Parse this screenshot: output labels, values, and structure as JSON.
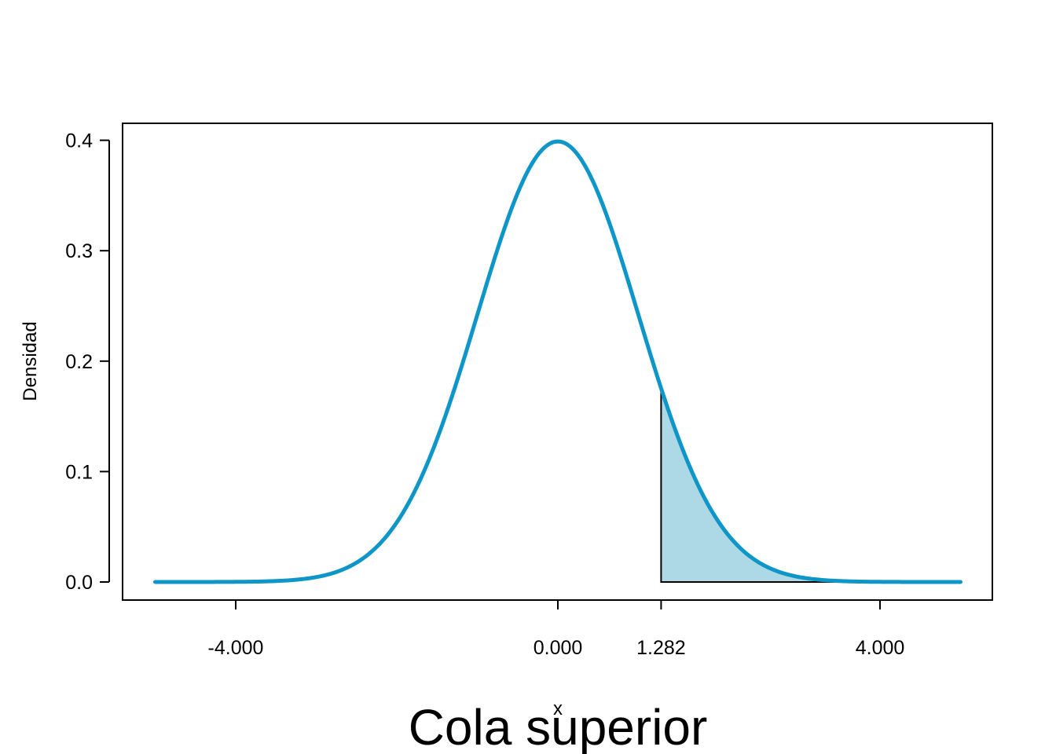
{
  "chart_data": {
    "type": "line",
    "distribution": "normal",
    "mean": 0,
    "sd": 1,
    "xlabel": "x",
    "ylabel": "Densidad",
    "subtitle": "Cola superior",
    "xlim": [
      -5,
      5
    ],
    "ylim": [
      0,
      0.4
    ],
    "x_ticks": [
      -4,
      0,
      1.282,
      4
    ],
    "x_tick_labels": [
      "-4.000",
      "0.000",
      "1.282",
      "4.000"
    ],
    "y_ticks": [
      0,
      0.1,
      0.2,
      0.3,
      0.4
    ],
    "y_tick_labels": [
      "0.0",
      "0.1",
      "0.2",
      "0.3",
      "0.4"
    ],
    "shaded_region": {
      "tail": "upper",
      "from": 1.282,
      "to": 5
    },
    "grid": false,
    "colors": {
      "curve": "#0e96c8",
      "shade_fill": "#add8e6",
      "shade_outline": "#000000"
    }
  }
}
